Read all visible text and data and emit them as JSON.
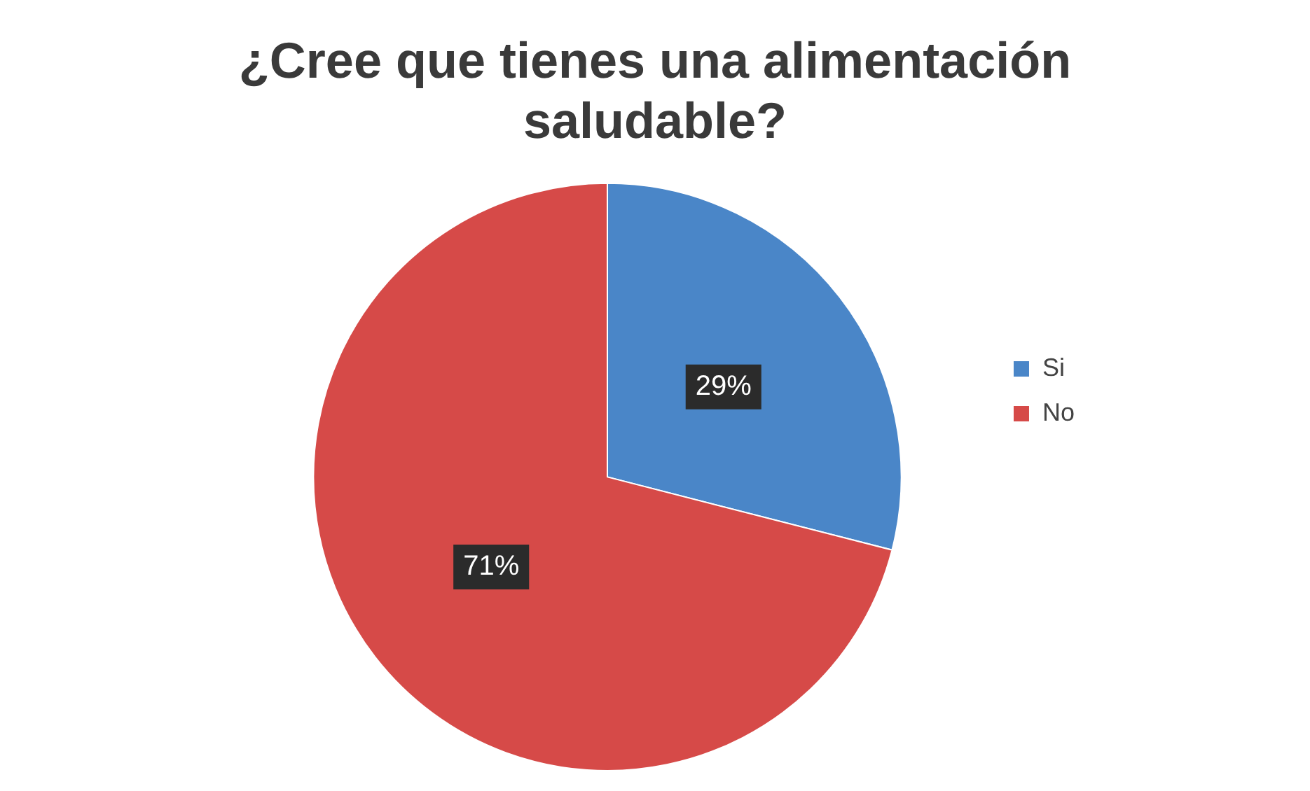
{
  "chart_data": {
    "type": "pie",
    "title": "¿Cree que tienes una alimentación saludable?",
    "categories": [
      "Si",
      "No"
    ],
    "values": [
      29,
      71
    ],
    "colors": [
      "#4a86c8",
      "#d64a48"
    ],
    "value_labels": [
      "29%",
      "71%"
    ],
    "legend": "right"
  }
}
